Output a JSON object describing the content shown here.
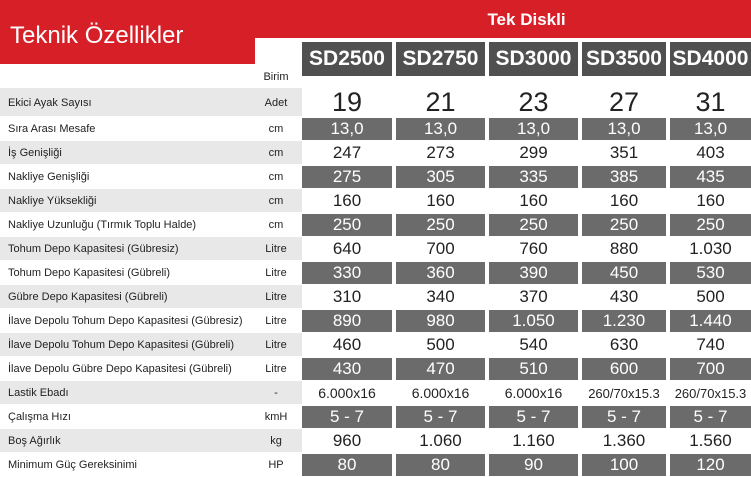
{
  "header": {
    "title": "Teknik Özellikler",
    "group": "Tek Diskli",
    "unit_heading": "Birim",
    "models": [
      "SD2500",
      "SD2750",
      "SD3000",
      "SD3500",
      "SD4000"
    ]
  },
  "table": {
    "rows": [
      [
        "Ekici Ayak Sayısı",
        "Adet",
        "19",
        "21",
        "23",
        "27",
        "31"
      ],
      [
        "Sıra Arası Mesafe",
        "cm",
        "13,0",
        "13,0",
        "13,0",
        "13,0",
        "13,0"
      ],
      [
        "İş Genişliği",
        "cm",
        "247",
        "273",
        "299",
        "351",
        "403"
      ],
      [
        "Nakliye Genişliği",
        "cm",
        "275",
        "305",
        "335",
        "385",
        "435"
      ],
      [
        "Nakliye Yüksekliği",
        "cm",
        "160",
        "160",
        "160",
        "160",
        "160"
      ],
      [
        "Nakliye Uzunluğu (Tırmık Toplu Halde)",
        "cm",
        "250",
        "250",
        "250",
        "250",
        "250"
      ],
      [
        "Tohum Depo Kapasitesi (Gübresiz)",
        "Litre",
        "640",
        "700",
        "760",
        "880",
        "1.030"
      ],
      [
        "Tohum Depo Kapasitesi (Gübreli)",
        "Litre",
        "330",
        "360",
        "390",
        "450",
        "530"
      ],
      [
        "Gübre Depo Kapasitesi (Gübreli)",
        "Litre",
        "310",
        "340",
        "370",
        "430",
        "500"
      ],
      [
        "İlave Depolu Tohum Depo Kapasitesi (Gübresiz)",
        "Litre",
        "890",
        "980",
        "1.050",
        "1.230",
        "1.440"
      ],
      [
        "İlave Depolu Tohum Depo Kapasitesi (Gübreli)",
        "Litre",
        "460",
        "500",
        "540",
        "630",
        "740"
      ],
      [
        "İlave Depolu Gübre Depo Kapasitesi (Gübreli)",
        "Litre",
        "430",
        "470",
        "510",
        "600",
        "700"
      ],
      [
        "Lastik Ebadı",
        "-",
        "6.000x16",
        "6.000x16",
        "6.000x16",
        "260/70x15.3",
        "260/70x15.3"
      ],
      [
        "Çalışma Hızı",
        "kmH",
        "5 - 7",
        "5 - 7",
        "5 - 7",
        "5 - 7",
        "5 - 7"
      ],
      [
        "Boş Ağırlık",
        "kg",
        "960",
        "1.060",
        "1.160",
        "1.360",
        "1.560"
      ],
      [
        "Minimum Güç Gereksinimi",
        "HP",
        "80",
        "80",
        "90",
        "100",
        "120"
      ]
    ]
  }
}
